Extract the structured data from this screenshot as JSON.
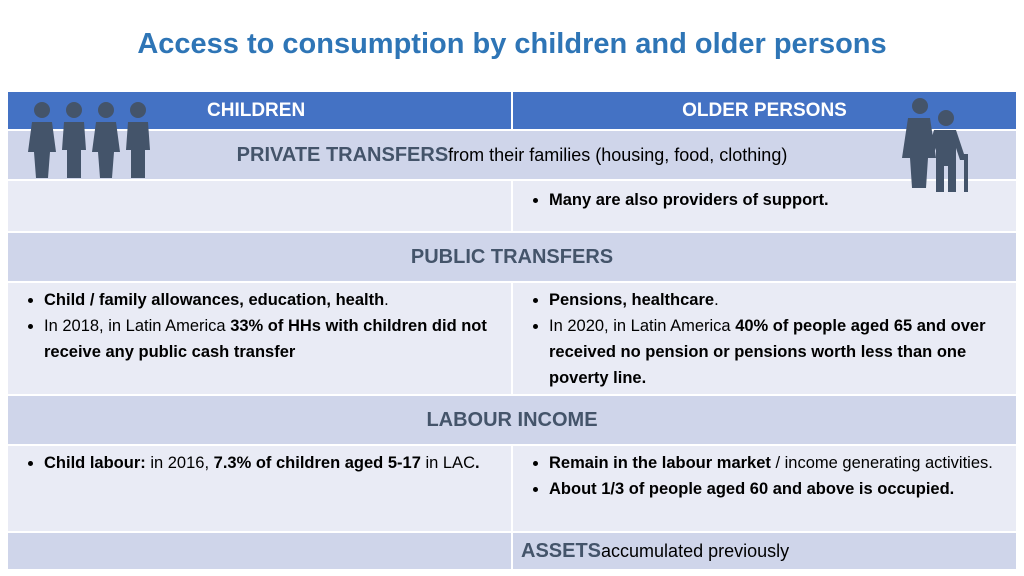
{
  "title": "Access to consumption by children and older persons",
  "table": {
    "header": [
      "CHILDREN",
      "OLDER PERSONS"
    ],
    "rows": [
      {
        "span": [
          {
            "text": "PRIVATE TRANSFERS",
            "bold": true
          },
          {
            "text": " from their families (housing, food, clothing)",
            "bold": false
          }
        ]
      },
      {
        "right": [
          [
            {
              "text": "Many are also providers of support.",
              "bold": true
            }
          ]
        ]
      },
      {
        "span": [
          {
            "text": "PUBLIC TRANSFERS",
            "bold": true
          }
        ]
      },
      {
        "left": [
          [
            {
              "text": "Child / family allowances, education, health",
              "bold": true
            },
            {
              "text": ".",
              "bold": false
            }
          ],
          [
            {
              "text": "In 2018, in Latin America ",
              "bold": false
            },
            {
              "text": "33% of HHs with children did not receive any public cash transfer",
              "bold": true
            }
          ]
        ],
        "right": [
          [
            {
              "text": "Pensions, healthcare",
              "bold": true
            },
            {
              "text": ".",
              "bold": false
            }
          ],
          [
            {
              "text": "In 2020, in Latin America ",
              "bold": false
            },
            {
              "text": "40% of people aged 65 and over received no pension or pensions worth less than one poverty line.",
              "bold": true
            }
          ]
        ]
      },
      {
        "span": [
          {
            "text": "LABOUR INCOME",
            "bold": true
          }
        ]
      },
      {
        "left": [
          [
            {
              "text": "Child labour:",
              "bold": true
            },
            {
              "text": " in 2016, ",
              "bold": false
            },
            {
              "text": "7.3% of children aged 5-17",
              "bold": true
            },
            {
              "text": " in LAC",
              "bold": false
            },
            {
              "text": ".",
              "bold": true
            }
          ]
        ],
        "right": [
          [
            {
              "text": "Remain in the labour market",
              "bold": true
            },
            {
              "text": " / income generating activities.",
              "bold": false
            }
          ],
          [
            {
              "text": "About 1/3 of people aged 60 and above is occupied.",
              "bold": true
            }
          ]
        ]
      },
      {
        "right_label": [
          {
            "text": "ASSETS",
            "bold": true
          },
          {
            "text": " accumulated previously",
            "bold": false
          }
        ]
      }
    ]
  }
}
